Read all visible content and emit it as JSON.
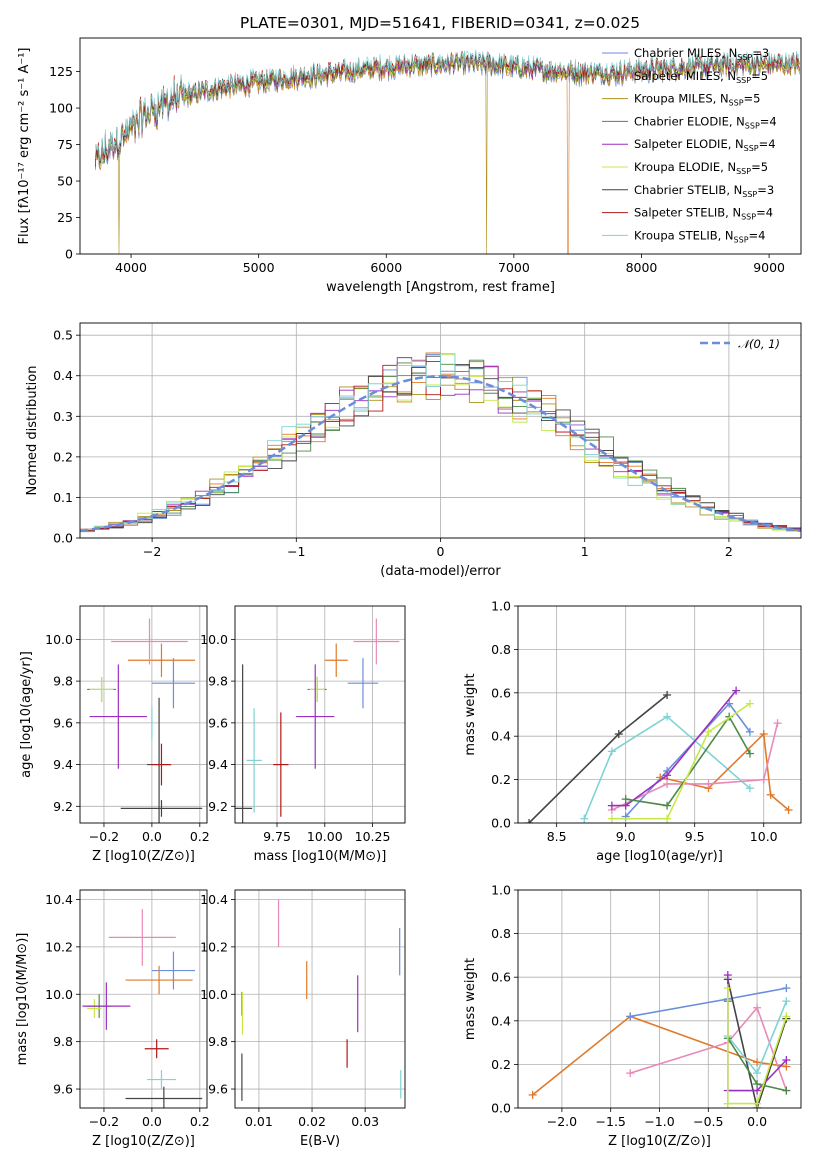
{
  "title": "PLATE=0301, MJD=51641, FIBERID=0341, z=0.025",
  "models": [
    {
      "name": "Chabrier MILES",
      "nssp": "3",
      "color": "#6a8edb"
    },
    {
      "name": "Salpeter MILES",
      "nssp": "5",
      "color": "#e07a2a"
    },
    {
      "name": "Kroupa MILES",
      "nssp": "5",
      "color": "#b09020"
    },
    {
      "name": "Chabrier ELODIE",
      "nssp": "4",
      "color": "#4a8a4a"
    },
    {
      "name": "Salpeter ELODIE",
      "nssp": "4",
      "color": "#9b2fbf"
    },
    {
      "name": "Kroupa ELODIE",
      "nssp": "5",
      "color": "#c8e84a"
    },
    {
      "name": "Chabrier STELIB",
      "nssp": "3",
      "color": "#444444"
    },
    {
      "name": "Salpeter STELIB",
      "nssp": "4",
      "color": "#b01818"
    },
    {
      "name": "Kroupa STELIB",
      "nssp": "4",
      "color": "#7fd3d3"
    }
  ],
  "chart_data": [
    {
      "id": "spectrum",
      "type": "line",
      "xlabel": "wavelength [Angstrom, rest frame]",
      "ylabel": "Flux [fλ10⁻¹⁷ erg cm⁻² s⁻¹ A⁻¹]",
      "xlim": [
        3600,
        9250
      ],
      "ylim": [
        0,
        148
      ],
      "xticks": [
        "4000",
        "5000",
        "6000",
        "7000",
        "8000",
        "9000"
      ],
      "yticks": [
        "0",
        "25",
        "50",
        "75",
        "100",
        "125"
      ],
      "continuum": {
        "x": [
          3700,
          3800,
          3900,
          4000,
          4100,
          4200,
          4300,
          4400,
          4600,
          4800,
          5000,
          5200,
          5400,
          5600,
          5800,
          6000,
          6200,
          6400,
          6600,
          6800,
          7000,
          7200,
          7400,
          7600,
          7800,
          8000,
          8200,
          8400,
          8600,
          8800,
          9000,
          9200
        ],
        "y": [
          60,
          70,
          78,
          85,
          95,
          100,
          105,
          108,
          112,
          115,
          118,
          120,
          122,
          124,
          126,
          128,
          129,
          130,
          131,
          130,
          128,
          126,
          125,
          124,
          124,
          126,
          127,
          128,
          129,
          130,
          130,
          130
        ]
      },
      "legend": "upper right"
    },
    {
      "id": "residuals",
      "type": "line",
      "xlabel": "(data-model)/error",
      "ylabel": "Normed distribution",
      "xlim": [
        -2.5,
        2.5
      ],
      "ylim": [
        0,
        0.53
      ],
      "xticks": [
        "−2",
        "−1",
        "0",
        "1",
        "2"
      ],
      "yticks": [
        "0.0",
        "0.1",
        "0.2",
        "0.3",
        "0.4",
        "0.5"
      ],
      "reference": {
        "name": "N(0,1)",
        "mean": 0,
        "sigma": 1
      },
      "legend": "upper right"
    },
    {
      "id": "age-vs-Z",
      "type": "scatter",
      "xlabel": "Z [log10(Z/Z⊙)]",
      "ylabel": "age [log10(age/yr)]",
      "xlim": [
        -0.3,
        0.23
      ],
      "ylim": [
        9.12,
        10.16
      ],
      "xticks": [
        "−0.2",
        "0.0",
        "0.2"
      ],
      "yticks": [
        "9.2",
        "9.4",
        "9.6",
        "9.8",
        "10.0"
      ],
      "points": [
        {
          "x": 0.09,
          "y": 9.79,
          "xerr": 0.09,
          "yerr": 0.12,
          "color": "#6a8edb"
        },
        {
          "x": 0.04,
          "y": 9.9,
          "xerr": 0.14,
          "yerr": 0.08,
          "color": "#e07a2a"
        },
        {
          "x": -0.01,
          "y": 9.99,
          "xerr": 0.16,
          "yerr": 0.11,
          "color": "#e88ab8"
        },
        {
          "x": -0.21,
          "y": 9.76,
          "xerr": 0.06,
          "yerr": 0.06,
          "color": "#4a8a4a"
        },
        {
          "x": -0.21,
          "y": 9.76,
          "xerr": 0.05,
          "yerr": 0.06,
          "color": "#c8e84a"
        },
        {
          "x": -0.14,
          "y": 9.63,
          "xerr": 0.12,
          "yerr": 0.25,
          "color": "#9b2fbf"
        },
        {
          "x": 0.03,
          "y": 9.4,
          "xerr": 0.05,
          "yerr": 0.32,
          "color": "#444444"
        },
        {
          "x": 0.04,
          "y": 9.4,
          "xerr": 0.04,
          "yerr": 0.1,
          "color": "#b01818"
        },
        {
          "x": 0.04,
          "y": 9.19,
          "xerr": 0.17,
          "yerr": 0.04,
          "color": "#444444"
        },
        {
          "x": 0.0,
          "y": 9.6,
          "xerr": 0.0,
          "yerr": 0.08,
          "color": "#7fd3d3"
        }
      ]
    },
    {
      "id": "age-vs-mass",
      "type": "scatter",
      "xlabel": "mass [log10(M/M⊙)]",
      "ylabel": "",
      "xlim": [
        9.53,
        10.42
      ],
      "ylim": [
        9.12,
        10.16
      ],
      "xticks": [
        "9.75",
        "10.00",
        "10.25"
      ],
      "yticks": [
        "9.2",
        "9.4",
        "9.6",
        "9.8",
        "10.0"
      ],
      "points": [
        {
          "x": 10.2,
          "y": 9.79,
          "xerr": 0.08,
          "yerr": 0.12,
          "color": "#6a8edb"
        },
        {
          "x": 10.06,
          "y": 9.9,
          "xerr": 0.06,
          "yerr": 0.08,
          "color": "#e07a2a"
        },
        {
          "x": 10.27,
          "y": 9.99,
          "xerr": 0.12,
          "yerr": 0.11,
          "color": "#e88ab8"
        },
        {
          "x": 9.96,
          "y": 9.76,
          "xerr": 0.05,
          "yerr": 0.06,
          "color": "#4a8a4a"
        },
        {
          "x": 9.96,
          "y": 9.76,
          "xerr": 0.04,
          "yerr": 0.06,
          "color": "#c8e84a"
        },
        {
          "x": 9.95,
          "y": 9.63,
          "xerr": 0.1,
          "yerr": 0.25,
          "color": "#9b2fbf"
        },
        {
          "x": 9.57,
          "y": 9.19,
          "xerr": 0.05,
          "yerr": 0.69,
          "color": "#444444"
        },
        {
          "x": 9.77,
          "y": 9.4,
          "xerr": 0.04,
          "yerr": 0.25,
          "color": "#b01818"
        },
        {
          "x": 9.63,
          "y": 9.42,
          "xerr": 0.04,
          "yerr": 0.25,
          "color": "#7fd3d3"
        }
      ]
    },
    {
      "id": "mass-weight-vs-age",
      "type": "line",
      "xlabel": "age [log10(age/yr)]",
      "ylabel": "mass weight",
      "xlim": [
        8.22,
        10.27
      ],
      "ylim": [
        0,
        1.0
      ],
      "xticks": [
        "8.5",
        "9.0",
        "9.5",
        "10.0"
      ],
      "yticks": [
        "0.0",
        "0.2",
        "0.4",
        "0.6",
        "0.8",
        "1.0"
      ],
      "series": [
        {
          "color": "#444444",
          "x": [
            8.3,
            8.95,
            9.3
          ],
          "y": [
            0.0,
            0.41,
            0.59
          ]
        },
        {
          "color": "#7fd3d3",
          "x": [
            8.7,
            8.9,
            9.3,
            9.9
          ],
          "y": [
            0.02,
            0.33,
            0.49,
            0.16
          ]
        },
        {
          "color": "#6a8edb",
          "x": [
            9.0,
            9.3,
            9.75,
            9.9
          ],
          "y": [
            0.03,
            0.24,
            0.55,
            0.42
          ]
        },
        {
          "color": "#e07a2a",
          "x": [
            9.25,
            9.6,
            10.0,
            10.05,
            10.18
          ],
          "y": [
            0.21,
            0.16,
            0.41,
            0.13,
            0.06
          ]
        },
        {
          "color": "#e88ab8",
          "x": [
            8.9,
            9.3,
            9.6,
            10.0,
            10.1
          ],
          "y": [
            0.06,
            0.18,
            0.18,
            0.2,
            0.46
          ]
        },
        {
          "color": "#9b2fbf",
          "x": [
            8.9,
            9.0,
            9.3,
            9.8
          ],
          "y": [
            0.08,
            0.08,
            0.22,
            0.61
          ]
        },
        {
          "color": "#4a8a4a",
          "x": [
            9.0,
            9.3,
            9.75,
            9.9
          ],
          "y": [
            0.11,
            0.08,
            0.49,
            0.32
          ]
        },
        {
          "color": "#c8e84a",
          "x": [
            8.9,
            9.3,
            9.6,
            9.9
          ],
          "y": [
            0.02,
            0.02,
            0.42,
            0.55
          ]
        }
      ]
    },
    {
      "id": "mass-vs-Z",
      "type": "scatter",
      "xlabel": "Z [log10(Z/Z⊙)]",
      "ylabel": "mass [log10(M/M⊙)]",
      "xlim": [
        -0.3,
        0.23
      ],
      "ylim": [
        9.52,
        10.44
      ],
      "xticks": [
        "−0.2",
        "0.0",
        "0.2"
      ],
      "yticks": [
        "9.6",
        "9.8",
        "10.0",
        "10.2",
        "10.4"
      ],
      "points": [
        {
          "x": 0.09,
          "y": 10.1,
          "xerr": 0.09,
          "yerr": 0.08,
          "color": "#6a8edb"
        },
        {
          "x": 0.03,
          "y": 10.06,
          "xerr": 0.14,
          "yerr": 0.06,
          "color": "#e07a2a"
        },
        {
          "x": -0.04,
          "y": 10.24,
          "xerr": 0.14,
          "yerr": 0.12,
          "color": "#e88ab8"
        },
        {
          "x": -0.22,
          "y": 9.95,
          "xerr": 0.05,
          "yerr": 0.05,
          "color": "#4a8a4a"
        },
        {
          "x": -0.24,
          "y": 9.94,
          "xerr": 0.03,
          "yerr": 0.04,
          "color": "#c8e84a"
        },
        {
          "x": -0.19,
          "y": 9.95,
          "xerr": 0.1,
          "yerr": 0.1,
          "color": "#9b2fbf"
        },
        {
          "x": 0.05,
          "y": 9.56,
          "xerr": 0.16,
          "yerr": 0.05,
          "color": "#444444"
        },
        {
          "x": 0.02,
          "y": 9.77,
          "xerr": 0.05,
          "yerr": 0.04,
          "color": "#b01818"
        },
        {
          "x": 0.04,
          "y": 9.64,
          "xerr": 0.06,
          "yerr": 0.04,
          "color": "#7fd3d3"
        }
      ]
    },
    {
      "id": "mass-vs-EBV",
      "type": "scatter",
      "xlabel": "E(B-V)",
      "ylabel": "",
      "xlim": [
        0.0055,
        0.0375
      ],
      "ylim": [
        9.52,
        10.44
      ],
      "xticks": [
        "0.01",
        "0.02",
        "0.03"
      ],
      "yticks": [
        "9.6",
        "9.8",
        "10.0",
        "10.2",
        "10.4"
      ],
      "points": [
        {
          "x": 0.0365,
          "y": 10.18,
          "xerr": 0,
          "yerr": 0.1,
          "color": "#6a8edb"
        },
        {
          "x": 0.019,
          "y": 10.06,
          "xerr": 0,
          "yerr": 0.08,
          "color": "#e07a2a"
        },
        {
          "x": 0.0137,
          "y": 10.3,
          "xerr": 0,
          "yerr": 0.1,
          "color": "#e88ab8"
        },
        {
          "x": 0.0068,
          "y": 9.96,
          "xerr": 0,
          "yerr": 0.05,
          "color": "#4a8a4a"
        },
        {
          "x": 0.0069,
          "y": 9.92,
          "xerr": 0,
          "yerr": 0.09,
          "color": "#c8e84a"
        },
        {
          "x": 0.0286,
          "y": 9.96,
          "xerr": 0,
          "yerr": 0.12,
          "color": "#9b2fbf"
        },
        {
          "x": 0.0068,
          "y": 9.65,
          "xerr": 0,
          "yerr": 0.1,
          "color": "#444444"
        },
        {
          "x": 0.0266,
          "y": 9.75,
          "xerr": 0,
          "yerr": 0.06,
          "color": "#b01818"
        },
        {
          "x": 0.0367,
          "y": 9.62,
          "xerr": 0,
          "yerr": 0.06,
          "color": "#7fd3d3"
        }
      ]
    },
    {
      "id": "mass-weight-vs-Z",
      "type": "line",
      "xlabel": "Z [log10(Z/Z⊙)]",
      "ylabel": "mass weight",
      "xlim": [
        -2.45,
        0.45
      ],
      "ylim": [
        0,
        1.0
      ],
      "xticks": [
        "−2.0",
        "−1.5",
        "−1.0",
        "−0.5",
        "0.0"
      ],
      "yticks": [
        "0.0",
        "0.2",
        "0.4",
        "0.6",
        "0.8",
        "1.0"
      ],
      "series": [
        {
          "color": "#e07a2a",
          "x": [
            -2.3,
            -1.3,
            0.0,
            0.3
          ],
          "y": [
            0.06,
            0.42,
            0.21,
            0.19
          ]
        },
        {
          "color": "#6a8edb",
          "x": [
            -1.3,
            -0.3,
            0.3
          ],
          "y": [
            0.42,
            0.5,
            0.55
          ]
        },
        {
          "color": "#e88ab8",
          "x": [
            -1.3,
            -0.3,
            0.0,
            0.3
          ],
          "y": [
            0.16,
            0.3,
            0.46,
            0.08
          ]
        },
        {
          "color": "#444444",
          "x": [
            -0.3,
            0.0,
            0.3
          ],
          "y": [
            0.59,
            0.0,
            0.41
          ]
        },
        {
          "color": "#9b2fbf",
          "x": [
            -0.3,
            -0.3,
            0.0,
            0.3
          ],
          "y": [
            0.61,
            0.08,
            0.08,
            0.22
          ]
        },
        {
          "color": "#7fd3d3",
          "x": [
            -0.3,
            -0.3,
            0.0,
            0.3
          ],
          "y": [
            0.02,
            0.33,
            0.16,
            0.49
          ]
        },
        {
          "color": "#4a8a4a",
          "x": [
            -0.3,
            -0.3,
            0.0,
            0.3
          ],
          "y": [
            0.49,
            0.32,
            0.11,
            0.08
          ]
        },
        {
          "color": "#c8e84a",
          "x": [
            -0.3,
            -0.3,
            0.0,
            0.3
          ],
          "y": [
            0.55,
            0.02,
            0.02,
            0.42
          ]
        }
      ]
    }
  ]
}
